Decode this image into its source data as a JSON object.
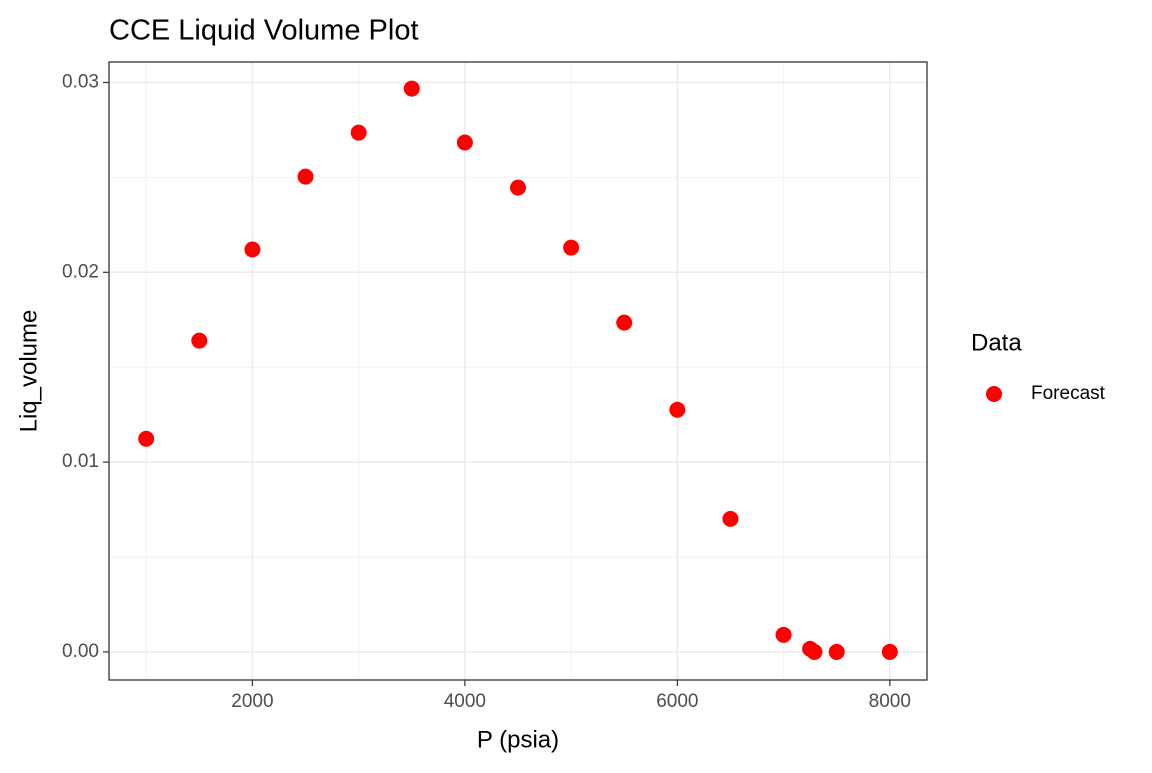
{
  "chart_data": {
    "type": "scatter",
    "title": "CCE Liquid Volume Plot",
    "x_label": "P (psia)",
    "y_label": "Liq_volume",
    "legend_title": "Data",
    "legend_position": "right",
    "x": [
      1000,
      1500,
      2000,
      2500,
      3000,
      3500,
      4000,
      4500,
      5000,
      5500,
      6000,
      6500,
      7000,
      7250,
      7290,
      7500,
      8000
    ],
    "series": [
      {
        "name": "Forecast",
        "color": "#ff0000",
        "values": [
          0.01123,
          0.0164,
          0.0212,
          0.02504,
          0.02736,
          0.02968,
          0.02684,
          0.02446,
          0.0213,
          0.01735,
          0.01276,
          0.00701,
          0.0009,
          0.00016,
          0,
          0,
          0
        ]
      }
    ],
    "xlim": [
      650,
      8350
    ],
    "xticks": [
      2000,
      4000,
      6000,
      8000
    ],
    "ylim": [
      -0.00148,
      0.03108
    ],
    "yticks": [
      {
        "value": 0,
        "label": "0.00"
      },
      0.01,
      0.02,
      0.03
    ],
    "grid": true
  }
}
